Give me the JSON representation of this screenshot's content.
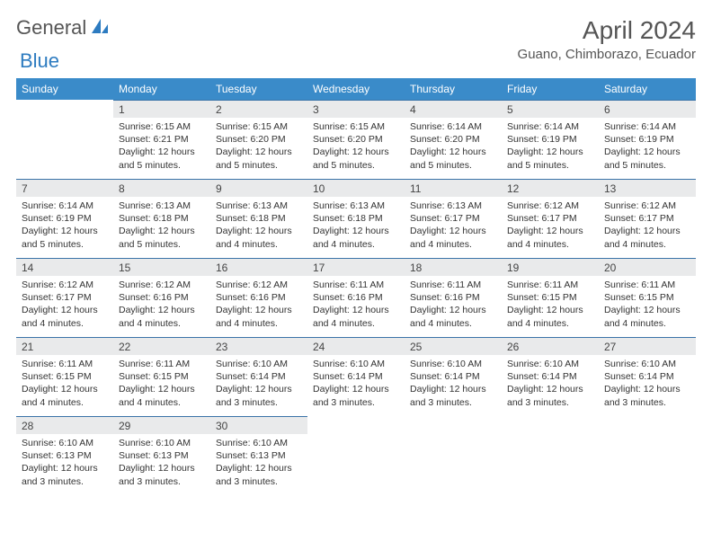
{
  "brand": {
    "part1": "General",
    "part2": "Blue"
  },
  "title": "April 2024",
  "location": "Guano, Chimborazo, Ecuador",
  "colors": {
    "header_bg": "#3a8bc9",
    "header_text": "#ffffff",
    "daynum_bg": "#e9eaeb",
    "rule": "#3a73a8",
    "text": "#333333",
    "title_text": "#555555"
  },
  "weekdays": [
    "Sunday",
    "Monday",
    "Tuesday",
    "Wednesday",
    "Thursday",
    "Friday",
    "Saturday"
  ],
  "weeks": [
    [
      null,
      {
        "n": "1",
        "sr": "6:15 AM",
        "ss": "6:21 PM",
        "dl": "12 hours and 5 minutes."
      },
      {
        "n": "2",
        "sr": "6:15 AM",
        "ss": "6:20 PM",
        "dl": "12 hours and 5 minutes."
      },
      {
        "n": "3",
        "sr": "6:15 AM",
        "ss": "6:20 PM",
        "dl": "12 hours and 5 minutes."
      },
      {
        "n": "4",
        "sr": "6:14 AM",
        "ss": "6:20 PM",
        "dl": "12 hours and 5 minutes."
      },
      {
        "n": "5",
        "sr": "6:14 AM",
        "ss": "6:19 PM",
        "dl": "12 hours and 5 minutes."
      },
      {
        "n": "6",
        "sr": "6:14 AM",
        "ss": "6:19 PM",
        "dl": "12 hours and 5 minutes."
      }
    ],
    [
      {
        "n": "7",
        "sr": "6:14 AM",
        "ss": "6:19 PM",
        "dl": "12 hours and 5 minutes."
      },
      {
        "n": "8",
        "sr": "6:13 AM",
        "ss": "6:18 PM",
        "dl": "12 hours and 5 minutes."
      },
      {
        "n": "9",
        "sr": "6:13 AM",
        "ss": "6:18 PM",
        "dl": "12 hours and 4 minutes."
      },
      {
        "n": "10",
        "sr": "6:13 AM",
        "ss": "6:18 PM",
        "dl": "12 hours and 4 minutes."
      },
      {
        "n": "11",
        "sr": "6:13 AM",
        "ss": "6:17 PM",
        "dl": "12 hours and 4 minutes."
      },
      {
        "n": "12",
        "sr": "6:12 AM",
        "ss": "6:17 PM",
        "dl": "12 hours and 4 minutes."
      },
      {
        "n": "13",
        "sr": "6:12 AM",
        "ss": "6:17 PM",
        "dl": "12 hours and 4 minutes."
      }
    ],
    [
      {
        "n": "14",
        "sr": "6:12 AM",
        "ss": "6:17 PM",
        "dl": "12 hours and 4 minutes."
      },
      {
        "n": "15",
        "sr": "6:12 AM",
        "ss": "6:16 PM",
        "dl": "12 hours and 4 minutes."
      },
      {
        "n": "16",
        "sr": "6:12 AM",
        "ss": "6:16 PM",
        "dl": "12 hours and 4 minutes."
      },
      {
        "n": "17",
        "sr": "6:11 AM",
        "ss": "6:16 PM",
        "dl": "12 hours and 4 minutes."
      },
      {
        "n": "18",
        "sr": "6:11 AM",
        "ss": "6:16 PM",
        "dl": "12 hours and 4 minutes."
      },
      {
        "n": "19",
        "sr": "6:11 AM",
        "ss": "6:15 PM",
        "dl": "12 hours and 4 minutes."
      },
      {
        "n": "20",
        "sr": "6:11 AM",
        "ss": "6:15 PM",
        "dl": "12 hours and 4 minutes."
      }
    ],
    [
      {
        "n": "21",
        "sr": "6:11 AM",
        "ss": "6:15 PM",
        "dl": "12 hours and 4 minutes."
      },
      {
        "n": "22",
        "sr": "6:11 AM",
        "ss": "6:15 PM",
        "dl": "12 hours and 4 minutes."
      },
      {
        "n": "23",
        "sr": "6:10 AM",
        "ss": "6:14 PM",
        "dl": "12 hours and 3 minutes."
      },
      {
        "n": "24",
        "sr": "6:10 AM",
        "ss": "6:14 PM",
        "dl": "12 hours and 3 minutes."
      },
      {
        "n": "25",
        "sr": "6:10 AM",
        "ss": "6:14 PM",
        "dl": "12 hours and 3 minutes."
      },
      {
        "n": "26",
        "sr": "6:10 AM",
        "ss": "6:14 PM",
        "dl": "12 hours and 3 minutes."
      },
      {
        "n": "27",
        "sr": "6:10 AM",
        "ss": "6:14 PM",
        "dl": "12 hours and 3 minutes."
      }
    ],
    [
      {
        "n": "28",
        "sr": "6:10 AM",
        "ss": "6:13 PM",
        "dl": "12 hours and 3 minutes."
      },
      {
        "n": "29",
        "sr": "6:10 AM",
        "ss": "6:13 PM",
        "dl": "12 hours and 3 minutes."
      },
      {
        "n": "30",
        "sr": "6:10 AM",
        "ss": "6:13 PM",
        "dl": "12 hours and 3 minutes."
      },
      null,
      null,
      null,
      null
    ]
  ],
  "labels": {
    "sunrise": "Sunrise:",
    "sunset": "Sunset:",
    "daylight": "Daylight:"
  }
}
